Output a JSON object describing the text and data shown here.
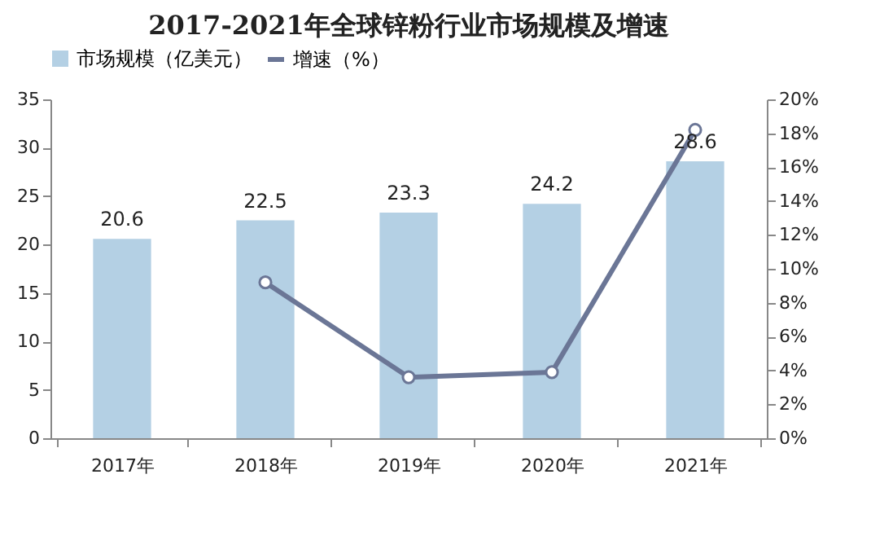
{
  "chart_data": {
    "type": "bar",
    "title": "2017-2021年全球锌粉行业市场规模及增速",
    "categories": [
      "2017年",
      "2018年",
      "2019年",
      "2020年",
      "2021年"
    ],
    "series": [
      {
        "name": "市场规模（亿美元）",
        "color": "#b4d0e4",
        "values": [
          20.6,
          22.5,
          23.3,
          24.2,
          28.6
        ],
        "value_labels": [
          "20.6",
          "22.5",
          "23.3",
          "24.2",
          "28.6"
        ]
      },
      {
        "name": "增速（%）",
        "type": "line",
        "axis": "y2",
        "color": "#6b7696",
        "values": [
          null,
          9.2,
          3.6,
          3.9,
          18.2
        ]
      }
    ],
    "ylim": [
      0,
      35
    ],
    "yticks": [
      0,
      5,
      10,
      15,
      20,
      25,
      30,
      35
    ],
    "y2lim": [
      0,
      20
    ],
    "y2ticks": [
      {
        "value": 0,
        "label": "0%"
      },
      {
        "value": 2,
        "label": "2%"
      },
      {
        "value": 4,
        "label": "4%"
      },
      {
        "value": 6,
        "label": "6%"
      },
      {
        "value": 8,
        "label": "8%"
      },
      {
        "value": 10,
        "label": "10%"
      },
      {
        "value": 12,
        "label": "12%"
      },
      {
        "value": 14,
        "label": "14%"
      },
      {
        "value": 16,
        "label": "16%"
      },
      {
        "value": 18,
        "label": "18%"
      },
      {
        "value": 20,
        "label": "20%"
      }
    ],
    "marker": "circle",
    "line_style": "solid",
    "grid": false,
    "legend": "top"
  }
}
